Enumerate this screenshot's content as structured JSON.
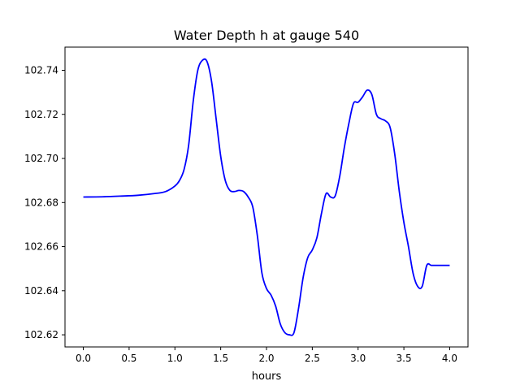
{
  "chart_data": {
    "type": "line",
    "title": "Water Depth h at gauge 540",
    "xlabel": "hours",
    "ylabel": "",
    "xlim": [
      -0.2,
      4.2
    ],
    "ylim": [
      102.6145,
      102.7505
    ],
    "x_ticks": [
      0.0,
      0.5,
      1.0,
      1.5,
      2.0,
      2.5,
      3.0,
      3.5,
      4.0
    ],
    "x_tick_labels": [
      "0.0",
      "0.5",
      "1.0",
      "1.5",
      "2.0",
      "2.5",
      "3.0",
      "3.5",
      "4.0"
    ],
    "y_ticks": [
      102.62,
      102.64,
      102.66,
      102.68,
      102.7,
      102.72,
      102.74
    ],
    "y_tick_labels": [
      "102.62",
      "102.64",
      "102.66",
      "102.68",
      "102.70",
      "102.72",
      "102.74"
    ],
    "grid": false,
    "series": [
      {
        "color": "#0000ff",
        "x": [
          0.0,
          0.2,
          0.4,
          0.6,
          0.8,
          0.9,
          1.0,
          1.05,
          1.1,
          1.15,
          1.2,
          1.25,
          1.3,
          1.35,
          1.4,
          1.45,
          1.5,
          1.55,
          1.6,
          1.65,
          1.7,
          1.75,
          1.8,
          1.85,
          1.9,
          1.95,
          2.0,
          2.05,
          2.1,
          2.15,
          2.2,
          2.25,
          2.3,
          2.35,
          2.4,
          2.45,
          2.5,
          2.55,
          2.6,
          2.65,
          2.7,
          2.75,
          2.8,
          2.85,
          2.9,
          2.95,
          3.0,
          3.05,
          3.1,
          3.15,
          3.2,
          3.25,
          3.3,
          3.35,
          3.4,
          3.45,
          3.5,
          3.55,
          3.6,
          3.65,
          3.7,
          3.75,
          3.8,
          3.85,
          3.9,
          3.95,
          4.0
        ],
        "y": [
          102.6825,
          102.6826,
          102.6829,
          102.6833,
          102.6842,
          102.685,
          102.6875,
          102.69,
          102.695,
          102.706,
          102.726,
          102.74,
          102.7445,
          102.744,
          102.735,
          102.718,
          102.701,
          102.69,
          102.6855,
          102.685,
          102.6855,
          102.685,
          102.6825,
          102.678,
          102.665,
          102.648,
          102.641,
          102.638,
          102.633,
          102.625,
          102.621,
          102.62,
          102.621,
          102.632,
          102.646,
          102.655,
          102.6585,
          102.664,
          102.675,
          102.684,
          102.6825,
          102.683,
          102.692,
          102.705,
          102.716,
          102.725,
          102.7255,
          102.728,
          102.731,
          102.729,
          102.72,
          102.718,
          102.717,
          102.714,
          102.702,
          102.685,
          102.671,
          102.66,
          102.648,
          102.642,
          102.642,
          102.6515,
          102.6515,
          102.6515,
          102.6515,
          102.6515,
          102.6515
        ]
      }
    ]
  }
}
